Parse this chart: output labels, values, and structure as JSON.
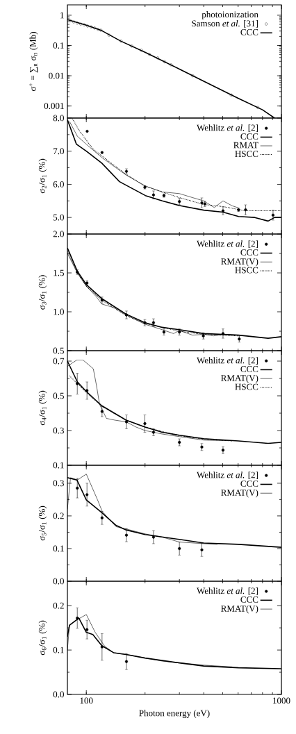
{
  "chart_data": [
    {
      "type": "line",
      "log": "xy",
      "ylabel": "σ$^{+}$ = ∑$_{n}$ σ$_{n}$ (Mb)",
      "legend": "top right",
      "legend_title": "photoionization",
      "tick_labels": "y",
      "xlim": [
        80,
        1000
      ],
      "xticks": [
        100,
        1000
      ],
      "ylim": [
        0.0004,
        2.2
      ],
      "yticks": [
        0.001,
        0.01,
        0.1,
        1
      ],
      "series": [
        {
          "name": "Samson *et al.* [31]",
          "type": "scatter",
          "marker": "circle",
          "color": "#000000",
          "x": [
            82.8,
            86.3,
            89.9,
            93.7,
            97.6,
            101.6,
            105.9,
            110.3,
            114.9,
            118.8,
            130.7,
            150.7,
            170.8,
            191.5,
            210.6,
            232.1,
            252,
            271.8,
            351,
            552.9,
            756.8
          ],
          "values": [
            0.66,
            0.6,
            0.55,
            0.51,
            0.48,
            0.44,
            0.41,
            0.38,
            0.34,
            0.32,
            0.22,
            0.14,
            0.096,
            0.07,
            0.051,
            0.039,
            0.029,
            0.023,
            0.01,
            0.0023,
            0.00089
          ]
        },
        {
          "name": "CCC",
          "line_style": "solid",
          "color": "#000000",
          "x": [
            80,
            100,
            120,
            150,
            200,
            300,
            400,
            600,
            800,
            922
          ],
          "values": [
            0.72,
            0.47,
            0.31,
            0.14,
            0.06,
            0.0166,
            0.0066,
            0.0018,
            0.00075,
            0.0004
          ]
        }
      ]
    },
    {
      "type": "line",
      "log": "x",
      "ylabel": "σ$_{2}$/σ$_{1}$ (%)",
      "legend": "top right",
      "tick_labels": "y",
      "xlim": [
        80,
        1000
      ],
      "xticks": [
        100,
        1000
      ],
      "ylim": [
        4.5,
        8.0
      ],
      "yticks": [
        {
          "value": 5,
          "label": "5.0"
        },
        {
          "value": 6,
          "label": "6.0"
        },
        {
          "value": 7,
          "label": "7.0"
        },
        {
          "value": 8,
          "label": "8.0"
        }
      ],
      "series": [
        {
          "name": "Wehlitz *et al.* [2]",
          "type": "scatter",
          "marker": "circle",
          "color": "#000000",
          "x": [
            101,
            120.4,
            160.6,
            199.6,
            221,
            250,
            300,
            391,
            405,
            502,
            603,
            655,
            906
          ],
          "values": [
            7.6,
            6.96,
            6.39,
            5.91,
            5.68,
            5.66,
            5.48,
            5.44,
            5.41,
            5.2,
            5.23,
            5.23,
            5.07
          ],
          "errors": [
            null,
            null,
            0.08,
            0.05,
            0.12,
            0.05,
            0.1,
            0.15,
            0.08,
            0.12,
            0.05,
            0.15,
            0.15
          ]
        },
        {
          "name": "CCC",
          "line_style": "solid",
          "color": "#000000",
          "x": [
            80,
            89,
            100,
            120,
            148,
            201,
            245,
            300,
            400,
            502,
            603,
            730,
            855,
            922,
            1000
          ],
          "values": [
            7.95,
            7.21,
            7.0,
            6.64,
            6.08,
            5.66,
            5.5,
            5.36,
            5.22,
            5.16,
            5.03,
            5.0,
            4.89,
            5.0,
            5.0
          ]
        },
        {
          "name": "RMAT",
          "line_style": "solid",
          "color": "#000000",
          "x": [
            82,
            90,
            100,
            120,
            160,
            200,
            245,
            300,
            350,
            400,
            453,
            502,
            560,
            603
          ],
          "values": [
            7.9,
            7.45,
            7.21,
            6.81,
            6.28,
            5.95,
            5.77,
            5.72,
            5.6,
            5.5,
            5.3,
            5.5,
            5.35,
            5.29
          ]
        },
        {
          "name": "HSCC",
          "line_style": "dotted",
          "color": "#000000",
          "x": [
            85,
            91.5,
            108,
            130,
            160,
            200,
            250,
            300,
            400,
            500,
            655,
            1000
          ],
          "values": [
            7.98,
            7.64,
            7.07,
            6.7,
            6.3,
            5.95,
            5.75,
            5.6,
            5.39,
            5.33,
            5.2,
            5.2
          ]
        }
      ]
    },
    {
      "type": "line",
      "log": "x",
      "ylabel": "σ$_{3}$/σ$_{1}$ (%)",
      "legend": "top right",
      "tick_labels": "y",
      "xlim": [
        80,
        1000
      ],
      "xticks": [
        100,
        1000
      ],
      "ylim": [
        0.5,
        2.0
      ],
      "yticks": [
        0.5,
        {
          "value": 1,
          "label": "1.0"
        },
        1.5,
        {
          "value": 2,
          "label": "2.0"
        }
      ],
      "series": [
        {
          "name": "Wehlitz *et al.* [2]",
          "type": "scatter",
          "marker": "circle",
          "color": "#000000",
          "x": [
            89.9,
            100.8,
            120.4,
            160.6,
            199.6,
            221,
            250,
            300,
            398,
            502,
            608
          ],
          "values": [
            1.51,
            1.37,
            1.15,
            0.96,
            0.86,
            0.86,
            0.74,
            0.74,
            0.69,
            0.72,
            0.65
          ],
          "errors": [
            0.03,
            0.03,
            0.04,
            0.05,
            0.04,
            0.05,
            0.04,
            0.04,
            0.04,
            0.06,
            0.04
          ]
        },
        {
          "name": "CCC",
          "line_style": "solid",
          "color": "#000000",
          "x": [
            80,
            90,
            100,
            120,
            160,
            200,
            245,
            300,
            400,
            603,
            855,
            1000
          ],
          "values": [
            1.82,
            1.52,
            1.35,
            1.17,
            0.97,
            0.86,
            0.8,
            0.77,
            0.72,
            0.7,
            0.66,
            0.68
          ]
        },
        {
          "name": "RMAT(V)",
          "line_style": "solid",
          "color": "#000000",
          "x": [
            80,
            90,
            100,
            112,
            120,
            140,
            160,
            200,
            245,
            280,
            300,
            350,
            400,
            450,
            500,
            600
          ],
          "values": [
            1.75,
            1.5,
            1.33,
            1.2,
            1.1,
            1.05,
            0.96,
            0.84,
            0.77,
            0.72,
            0.76,
            0.7,
            0.71,
            0.69,
            0.71,
            0.7
          ]
        },
        {
          "name": "HSCC",
          "line_style": "dotted",
          "color": "#000000",
          "x": [
            80,
            90,
            100,
            120,
            160,
            200,
            300,
            400,
            500,
            600
          ],
          "values": [
            1.78,
            1.5,
            1.33,
            1.15,
            0.95,
            0.85,
            0.75,
            0.71,
            0.7,
            0.69
          ]
        }
      ]
    },
    {
      "type": "line",
      "log": "x",
      "ylabel": "σ$_{4}$/σ$_{1}$ (%)",
      "legend": "top right",
      "tick_labels": "y",
      "xlim": [
        80,
        1000
      ],
      "xticks": [
        100,
        1000
      ],
      "ylim": [
        0.1,
        0.76
      ],
      "yticks": [
        0.1,
        0.3,
        0.5,
        0.7
      ],
      "series": [
        {
          "name": "Wehlitz *et al.* [2]",
          "type": "scatter",
          "marker": "circle",
          "color": "#000000",
          "x": [
            89.9,
            100.8,
            120.4,
            160.6,
            199.6,
            221,
            300,
            391,
            502
          ],
          "values": [
            0.57,
            0.53,
            0.41,
            0.35,
            0.34,
            0.29,
            0.232,
            0.205,
            0.187
          ],
          "errors": [
            0.06,
            0.05,
            0.03,
            0.04,
            0.05,
            0.02,
            0.02,
            0.02,
            0.02
          ]
        },
        {
          "name": "CCC",
          "line_style": "solid",
          "color": "#000000",
          "x": [
            80,
            90,
            100,
            120,
            160,
            200,
            245,
            300,
            400,
            603,
            855,
            1000
          ],
          "values": [
            0.7,
            0.58,
            0.525,
            0.443,
            0.36,
            0.32,
            0.29,
            0.273,
            0.253,
            0.24,
            0.226,
            0.232
          ]
        },
        {
          "name": "RMAT(V)",
          "line_style": "solid",
          "color": "#000000",
          "x": [
            80,
            89.6,
            96,
            108.6,
            112.6,
            117,
            126.8,
            140,
            160,
            180,
            200,
            245,
            300,
            400,
            580
          ],
          "values": [
            0.67,
            0.707,
            0.707,
            0.656,
            0.563,
            0.45,
            0.37,
            0.36,
            0.35,
            0.32,
            0.3,
            0.28,
            0.265,
            0.245,
            0.24
          ]
        },
        {
          "name": "HSCC",
          "line_style": "dotted",
          "color": "#000000",
          "x": [
            82,
            90,
            100,
            120,
            160,
            200,
            300,
            400,
            560
          ],
          "values": [
            0.616,
            0.57,
            0.52,
            0.44,
            0.36,
            0.32,
            0.27,
            0.25,
            0.24
          ]
        }
      ]
    },
    {
      "type": "line",
      "log": "x",
      "ylabel": "σ$_{5}$/σ$_{1}$ (%)",
      "legend": "top right",
      "tick_labels": "y",
      "xlim": [
        80,
        1000
      ],
      "xticks": [
        100,
        1000
      ],
      "ylim": [
        0,
        0.355
      ],
      "yticks": [
        {
          "value": 0,
          "label": "0.0"
        },
        0.1,
        0.2,
        0.3
      ],
      "series": [
        {
          "name": "Wehlitz *et al.* [2]",
          "type": "scatter",
          "marker": "circle",
          "color": "#000000",
          "x": [
            89.9,
            100.8,
            120.4,
            160.6,
            221,
            300,
            391
          ],
          "values": [
            0.285,
            0.265,
            0.194,
            0.141,
            0.135,
            0.1,
            0.096
          ],
          "errors": [
            0.03,
            0.035,
            0.02,
            0.02,
            0.02,
            0.02,
            0.02
          ]
        },
        {
          "name": "CCC",
          "line_style": "solid",
          "color": "#000000",
          "x": [
            80,
            89.5,
            100,
            120,
            142,
            160,
            200,
            300,
            400,
            603,
            1000
          ],
          "values": [
            0.317,
            0.31,
            0.249,
            0.21,
            0.171,
            0.157,
            0.143,
            0.128,
            0.117,
            0.113,
            0.104
          ]
        },
        {
          "name": "RMAT(V)",
          "line_style": "solid",
          "color": "#000000",
          "x": [
            80,
            83,
            90,
            100,
            114,
            120.6,
            142,
            160,
            200,
            245,
            300,
            400,
            470
          ],
          "values": [
            0.22,
            0.317,
            0.31,
            0.328,
            0.25,
            0.214,
            0.167,
            0.16,
            0.145,
            0.135,
            0.12,
            0.115,
            0.113
          ]
        }
      ]
    },
    {
      "type": "line",
      "log": "x",
      "xlabel": "Photon energy (eV)",
      "ylabel": "σ$_{6}$/σ$_{1}$ (%)",
      "legend": "top right",
      "xlim": [
        80,
        1000
      ],
      "xticks": [
        100,
        1000
      ],
      "ylim": [
        0,
        0.255
      ],
      "yticks": [
        {
          "value": 0,
          "label": "0.0"
        },
        0.1,
        0.2
      ],
      "series": [
        {
          "name": "Wehlitz *et al.* [2]",
          "type": "scatter",
          "marker": "circle",
          "color": "#000000",
          "x": [
            89.9,
            100.8,
            120.4,
            160.6
          ],
          "values": [
            0.172,
            0.146,
            0.107,
            0.074
          ],
          "errors": [
            0.023,
            0.021,
            0.03,
            0.018
          ]
        },
        {
          "name": "CCC",
          "line_style": "solid",
          "color": "#000000",
          "x": [
            80,
            82,
            91.6,
            100,
            108,
            120,
            138,
            160,
            200,
            300,
            400,
            603,
            1000
          ],
          "values": [
            0.13,
            0.156,
            0.172,
            0.14,
            0.135,
            0.11,
            0.094,
            0.09,
            0.082,
            0.071,
            0.064,
            0.06,
            0.058
          ]
        },
        {
          "name": "RMAT(V)",
          "line_style": "solid",
          "color": "#000000",
          "x": [
            80,
            82,
            89.6,
            100,
            111,
            124,
            138,
            170,
            245,
            400,
            560
          ],
          "values": [
            0.1,
            0.156,
            0.168,
            0.18,
            0.14,
            0.109,
            0.094,
            0.088,
            0.075,
            0.066,
            0.062
          ]
        }
      ]
    }
  ]
}
